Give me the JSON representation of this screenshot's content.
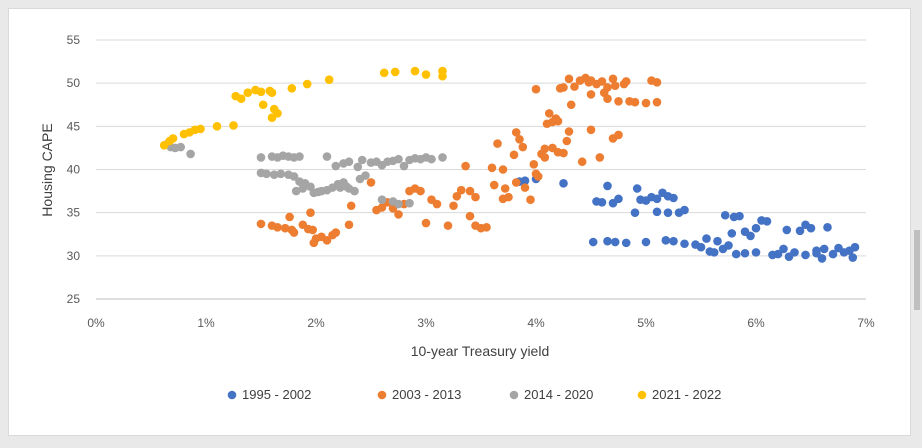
{
  "chart_data": {
    "type": "scatter",
    "title": "",
    "xlabel": "10-year Treasury yield",
    "ylabel": "Housing CAPE",
    "xlim": [
      0,
      7
    ],
    "ylim": [
      25,
      55
    ],
    "x_ticks": [
      "0%",
      "1%",
      "2%",
      "3%",
      "4%",
      "5%",
      "6%",
      "7%"
    ],
    "y_ticks": [
      "25",
      "30",
      "35",
      "40",
      "45",
      "50",
      "55"
    ],
    "grid": "horizontal",
    "legend_position": "bottom",
    "series": [
      {
        "name": "1995 - 2002",
        "color": "#4472C4",
        "points": [
          [
            3.85,
            38.6
          ],
          [
            3.9,
            38.7
          ],
          [
            4.0,
            38.9
          ],
          [
            4.25,
            38.4
          ],
          [
            4.55,
            36.3
          ],
          [
            4.6,
            36.2
          ],
          [
            4.65,
            38.1
          ],
          [
            4.7,
            36.1
          ],
          [
            4.75,
            36.6
          ],
          [
            4.92,
            37.8
          ],
          [
            4.95,
            36.5
          ],
          [
            5.0,
            36.4
          ],
          [
            5.05,
            36.8
          ],
          [
            5.1,
            36.6
          ],
          [
            5.15,
            37.3
          ],
          [
            5.2,
            36.9
          ],
          [
            5.25,
            36.7
          ],
          [
            5.3,
            35.0
          ],
          [
            5.35,
            35.3
          ],
          [
            4.9,
            35.0
          ],
          [
            5.1,
            35.1
          ],
          [
            5.2,
            35.0
          ],
          [
            4.52,
            31.6
          ],
          [
            4.65,
            31.7
          ],
          [
            4.72,
            31.6
          ],
          [
            4.82,
            31.5
          ],
          [
            5.0,
            31.6
          ],
          [
            5.18,
            31.8
          ],
          [
            5.25,
            31.7
          ],
          [
            5.35,
            31.4
          ],
          [
            5.45,
            31.3
          ],
          [
            5.5,
            31.0
          ],
          [
            5.55,
            32.0
          ],
          [
            5.58,
            30.5
          ],
          [
            5.62,
            30.4
          ],
          [
            5.65,
            31.7
          ],
          [
            5.7,
            30.8
          ],
          [
            5.75,
            31.2
          ],
          [
            5.78,
            32.6
          ],
          [
            5.72,
            34.7
          ],
          [
            5.8,
            34.5
          ],
          [
            5.85,
            34.6
          ],
          [
            5.9,
            32.8
          ],
          [
            5.95,
            32.3
          ],
          [
            6.0,
            33.2
          ],
          [
            6.05,
            34.1
          ],
          [
            6.1,
            34.0
          ],
          [
            5.82,
            30.2
          ],
          [
            5.9,
            30.3
          ],
          [
            6.0,
            30.4
          ],
          [
            6.15,
            30.1
          ],
          [
            6.2,
            30.2
          ],
          [
            6.25,
            30.8
          ],
          [
            6.3,
            29.9
          ],
          [
            6.35,
            30.4
          ],
          [
            6.28,
            33.0
          ],
          [
            6.4,
            32.9
          ],
          [
            6.45,
            33.6
          ],
          [
            6.5,
            33.2
          ],
          [
            6.55,
            30.6
          ],
          [
            6.6,
            29.7
          ],
          [
            6.65,
            33.3
          ],
          [
            6.7,
            30.2
          ],
          [
            6.75,
            30.9
          ],
          [
            6.8,
            30.4
          ],
          [
            6.85,
            30.6
          ],
          [
            6.88,
            29.8
          ],
          [
            6.9,
            31.0
          ],
          [
            6.45,
            30.1
          ],
          [
            6.55,
            30.3
          ],
          [
            6.62,
            30.8
          ]
        ]
      },
      {
        "name": "2003 - 2013",
        "color": "#ED7D31",
        "points": [
          [
            1.5,
            33.7
          ],
          [
            1.6,
            33.5
          ],
          [
            1.65,
            33.3
          ],
          [
            1.72,
            33.2
          ],
          [
            1.78,
            33.0
          ],
          [
            1.8,
            32.7
          ],
          [
            1.76,
            34.5
          ],
          [
            1.88,
            33.6
          ],
          [
            1.93,
            33.1
          ],
          [
            1.97,
            33.0
          ],
          [
            1.95,
            35.0
          ],
          [
            1.98,
            31.5
          ],
          [
            2.0,
            32.0
          ],
          [
            2.05,
            32.2
          ],
          [
            2.1,
            31.8
          ],
          [
            2.15,
            32.4
          ],
          [
            2.18,
            32.7
          ],
          [
            2.3,
            33.6
          ],
          [
            2.32,
            35.8
          ],
          [
            2.5,
            38.5
          ],
          [
            2.6,
            35.6
          ],
          [
            2.65,
            36.2
          ],
          [
            2.55,
            35.3
          ],
          [
            2.7,
            35.5
          ],
          [
            2.75,
            34.8
          ],
          [
            2.8,
            36.0
          ],
          [
            2.85,
            37.5
          ],
          [
            2.9,
            37.8
          ],
          [
            2.95,
            37.5
          ],
          [
            3.0,
            33.8
          ],
          [
            3.05,
            36.5
          ],
          [
            3.1,
            36.0
          ],
          [
            3.2,
            33.5
          ],
          [
            3.25,
            35.8
          ],
          [
            3.28,
            36.9
          ],
          [
            3.32,
            37.6
          ],
          [
            3.36,
            40.4
          ],
          [
            3.4,
            37.5
          ],
          [
            3.45,
            36.8
          ],
          [
            3.4,
            34.6
          ],
          [
            3.45,
            33.5
          ],
          [
            3.5,
            33.2
          ],
          [
            3.55,
            33.3
          ],
          [
            3.6,
            40.2
          ],
          [
            3.65,
            43.0
          ],
          [
            3.7,
            40.0
          ],
          [
            3.72,
            37.8
          ],
          [
            3.75,
            36.8
          ],
          [
            3.8,
            41.7
          ],
          [
            3.82,
            44.3
          ],
          [
            3.85,
            43.5
          ],
          [
            3.88,
            42.6
          ],
          [
            3.9,
            37.9
          ],
          [
            3.95,
            36.5
          ],
          [
            3.98,
            40.6
          ],
          [
            4.0,
            39.5
          ],
          [
            4.02,
            39.2
          ],
          [
            4.05,
            41.8
          ],
          [
            4.08,
            42.4
          ],
          [
            4.1,
            45.3
          ],
          [
            4.12,
            46.5
          ],
          [
            4.15,
            45.5
          ],
          [
            4.18,
            45.9
          ],
          [
            4.2,
            45.6
          ],
          [
            4.22,
            49.4
          ],
          [
            4.25,
            49.5
          ],
          [
            4.28,
            43.3
          ],
          [
            4.3,
            44.4
          ],
          [
            4.32,
            47.5
          ],
          [
            4.35,
            49.6
          ],
          [
            4.4,
            50.3
          ],
          [
            4.45,
            50.6
          ],
          [
            4.48,
            50.1
          ],
          [
            4.5,
            50.3
          ],
          [
            4.55,
            49.9
          ],
          [
            4.6,
            50.2
          ],
          [
            4.62,
            48.9
          ],
          [
            4.65,
            48.2
          ],
          [
            4.7,
            50.5
          ],
          [
            4.72,
            49.7
          ],
          [
            4.75,
            47.9
          ],
          [
            4.8,
            49.9
          ],
          [
            4.82,
            50.2
          ],
          [
            4.85,
            47.9
          ],
          [
            4.9,
            47.8
          ],
          [
            5.0,
            47.7
          ],
          [
            5.05,
            50.3
          ],
          [
            5.1,
            50.1
          ],
          [
            4.5,
            44.6
          ],
          [
            4.58,
            41.4
          ],
          [
            4.7,
            43.6
          ],
          [
            4.75,
            44.0
          ],
          [
            4.42,
            40.9
          ],
          [
            4.15,
            42.5
          ],
          [
            4.0,
            49.3
          ],
          [
            4.3,
            50.5
          ],
          [
            4.5,
            48.7
          ],
          [
            4.65,
            49.5
          ],
          [
            5.1,
            47.8
          ],
          [
            4.2,
            42.0
          ],
          [
            4.25,
            41.9
          ],
          [
            4.08,
            41.4
          ],
          [
            3.62,
            38.2
          ],
          [
            3.7,
            36.6
          ],
          [
            3.82,
            38.5
          ]
        ]
      },
      {
        "name": "2014 - 2020",
        "color": "#A5A5A5",
        "points": [
          [
            0.64,
            42.9
          ],
          [
            0.68,
            42.6
          ],
          [
            0.72,
            42.5
          ],
          [
            0.77,
            42.6
          ],
          [
            0.86,
            41.8
          ],
          [
            1.5,
            41.4
          ],
          [
            1.6,
            41.5
          ],
          [
            1.65,
            41.4
          ],
          [
            1.7,
            41.6
          ],
          [
            1.75,
            41.5
          ],
          [
            1.8,
            41.4
          ],
          [
            1.85,
            41.5
          ],
          [
            2.1,
            41.5
          ],
          [
            1.5,
            39.6
          ],
          [
            1.55,
            39.5
          ],
          [
            1.62,
            39.4
          ],
          [
            1.68,
            39.5
          ],
          [
            1.75,
            39.4
          ],
          [
            1.8,
            39.2
          ],
          [
            1.85,
            38.6
          ],
          [
            1.9,
            38.4
          ],
          [
            1.95,
            38.0
          ],
          [
            1.98,
            37.3
          ],
          [
            2.02,
            37.4
          ],
          [
            2.05,
            37.5
          ],
          [
            2.1,
            37.6
          ],
          [
            2.15,
            37.9
          ],
          [
            2.2,
            38.3
          ],
          [
            2.22,
            37.9
          ],
          [
            2.25,
            38.5
          ],
          [
            2.28,
            38.0
          ],
          [
            2.3,
            37.8
          ],
          [
            2.35,
            37.5
          ],
          [
            2.4,
            38.9
          ],
          [
            2.45,
            39.3
          ],
          [
            2.18,
            40.4
          ],
          [
            2.25,
            40.7
          ],
          [
            2.3,
            40.9
          ],
          [
            2.38,
            40.3
          ],
          [
            2.42,
            41.1
          ],
          [
            2.5,
            40.8
          ],
          [
            2.55,
            40.9
          ],
          [
            2.6,
            40.5
          ],
          [
            2.65,
            40.9
          ],
          [
            2.7,
            41.0
          ],
          [
            2.75,
            41.2
          ],
          [
            2.8,
            40.4
          ],
          [
            2.85,
            41.1
          ],
          [
            2.9,
            41.3
          ],
          [
            2.95,
            41.2
          ],
          [
            3.0,
            41.4
          ],
          [
            3.05,
            41.2
          ],
          [
            3.15,
            41.4
          ],
          [
            2.6,
            36.5
          ],
          [
            2.7,
            36.3
          ],
          [
            2.75,
            36.0
          ],
          [
            2.85,
            36.1
          ],
          [
            1.82,
            37.5
          ],
          [
            1.88,
            37.8
          ]
        ]
      },
      {
        "name": "2021 - 2022",
        "color": "#FFC000",
        "points": [
          [
            0.62,
            42.8
          ],
          [
            0.67,
            43.3
          ],
          [
            0.7,
            43.6
          ],
          [
            0.8,
            44.1
          ],
          [
            0.85,
            44.3
          ],
          [
            0.9,
            44.6
          ],
          [
            0.95,
            44.7
          ],
          [
            1.1,
            45.0
          ],
          [
            1.25,
            45.1
          ],
          [
            1.27,
            48.5
          ],
          [
            1.32,
            48.2
          ],
          [
            1.38,
            48.9
          ],
          [
            1.45,
            49.2
          ],
          [
            1.5,
            49.0
          ],
          [
            1.52,
            47.5
          ],
          [
            1.58,
            49.1
          ],
          [
            1.6,
            48.9
          ],
          [
            1.62,
            47.0
          ],
          [
            1.65,
            46.5
          ],
          [
            1.6,
            46.0
          ],
          [
            1.78,
            49.4
          ],
          [
            1.92,
            49.9
          ],
          [
            2.12,
            50.4
          ],
          [
            2.62,
            51.2
          ],
          [
            2.72,
            51.3
          ],
          [
            2.9,
            51.4
          ],
          [
            3.15,
            51.4
          ],
          [
            3.15,
            50.8
          ],
          [
            3.0,
            51.0
          ]
        ]
      }
    ]
  }
}
